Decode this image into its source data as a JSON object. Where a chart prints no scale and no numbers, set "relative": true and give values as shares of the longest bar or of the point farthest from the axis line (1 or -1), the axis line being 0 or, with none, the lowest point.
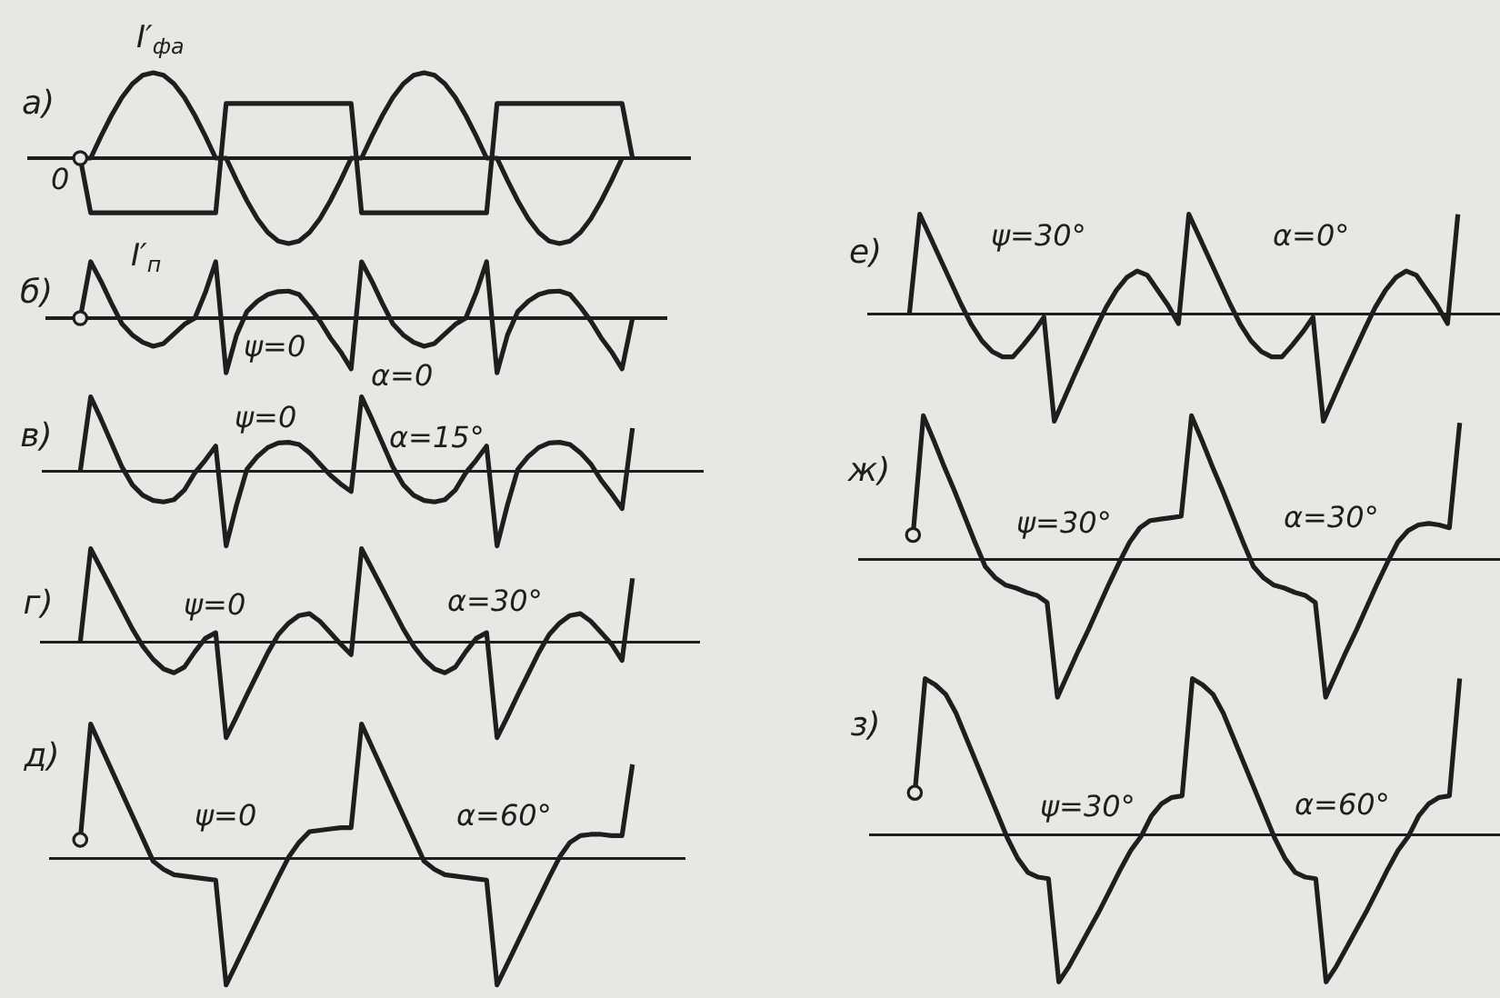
{
  "chart_data": [
    {
      "type": "line",
      "title": "а)",
      "relative": true,
      "categories": [
        null,
        null,
        null,
        null,
        null,
        null,
        null,
        null,
        null,
        null,
        null,
        null,
        null,
        null,
        null,
        null,
        null,
        null,
        null,
        null,
        null,
        null,
        null,
        null,
        null,
        null,
        null,
        null,
        null,
        null,
        null,
        null,
        null,
        null,
        null,
        null,
        null,
        null,
        null,
        null,
        null,
        null,
        null,
        null,
        null,
        null,
        null,
        null,
        null,
        null,
        null,
        null,
        null,
        null
      ],
      "series": [
        {
          "name": "I′$_{фa}$",
          "color": "#1e1e1e",
          "values": [
            0,
            0,
            0.26,
            0.5,
            0.71,
            0.87,
            0.97,
            1,
            0.97,
            0.87,
            0.71,
            0.5,
            0.26,
            0,
            0,
            -0.26,
            -0.5,
            -0.71,
            -0.87,
            -0.97,
            -1,
            -0.97,
            -0.87,
            -0.71,
            -0.5,
            -0.26,
            0,
            0,
            0.26,
            0.5,
            0.71,
            0.87,
            0.97,
            1,
            0.97,
            0.87,
            0.71,
            0.5,
            0.26,
            0,
            0,
            -0.26,
            -0.5,
            -0.71,
            -0.87,
            -0.97,
            -1,
            -0.97,
            -0.87,
            -0.71,
            -0.5,
            -0.26,
            0,
            null
          ]
        },
        {
          "name": "I′$_{п}$",
          "color": "#1e1e1e",
          "values": [
            0,
            -0.64,
            -0.64,
            -0.64,
            -0.64,
            -0.64,
            -0.64,
            -0.64,
            -0.64,
            -0.64,
            -0.64,
            -0.64,
            -0.64,
            -0.64,
            0.64,
            0.64,
            0.64,
            0.64,
            0.64,
            0.64,
            0.64,
            0.64,
            0.64,
            0.64,
            0.64,
            0.64,
            0.64,
            -0.64,
            -0.64,
            -0.64,
            -0.64,
            -0.64,
            -0.64,
            -0.64,
            -0.64,
            -0.64,
            -0.64,
            -0.64,
            -0.64,
            -0.64,
            0.64,
            0.64,
            0.64,
            0.64,
            0.64,
            0.64,
            0.64,
            0.64,
            0.64,
            0.64,
            0.64,
            0.64,
            0.64,
            0
          ]
        }
      ],
      "annotations": [
        "0"
      ]
    },
    {
      "type": "line",
      "title": "б)",
      "relative": true,
      "categories": [
        null,
        null,
        null,
        null,
        null,
        null,
        null,
        null,
        null,
        null,
        null,
        null,
        null,
        null,
        null,
        null,
        null,
        null,
        null,
        null,
        null,
        null,
        null,
        null,
        null,
        null,
        null,
        null,
        null,
        null,
        null,
        null,
        null,
        null,
        null,
        null,
        null,
        null,
        null,
        null,
        null,
        null,
        null,
        null,
        null,
        null,
        null,
        null,
        null,
        null,
        null,
        null,
        null,
        null
      ],
      "series": [
        {
          "color": "#1e1e1e",
          "values": [
            0,
            1.0,
            0.65,
            0.26,
            -0.1,
            -0.3,
            -0.43,
            -0.5,
            -0.45,
            -0.28,
            -0.11,
            0.0,
            0.45,
            1.0,
            -0.97,
            -0.3,
            0.12,
            0.3,
            0.42,
            0.47,
            0.48,
            0.42,
            0.2,
            -0.05,
            -0.35,
            -0.6,
            -0.9,
            1.0,
            0.65,
            0.26,
            -0.1,
            -0.3,
            -0.43,
            -0.5,
            -0.45,
            -0.28,
            -0.11,
            0.0,
            0.45,
            1.0,
            -0.97,
            -0.3,
            0.12,
            0.3,
            0.42,
            0.47,
            0.48,
            0.42,
            0.2,
            -0.05,
            -0.35,
            -0.6,
            -0.9,
            0
          ]
        }
      ],
      "annotations": [
        "ψ=0",
        "α=0"
      ]
    },
    {
      "type": "line",
      "title": "в)",
      "relative": true,
      "categories": [
        null,
        null,
        null,
        null,
        null,
        null,
        null,
        null,
        null,
        null,
        null,
        null,
        null,
        null,
        null,
        null,
        null,
        null,
        null,
        null,
        null,
        null,
        null,
        null,
        null,
        null,
        null,
        null,
        null,
        null,
        null,
        null,
        null,
        null,
        null,
        null,
        null,
        null,
        null,
        null,
        null,
        null,
        null,
        null,
        null,
        null,
        null,
        null,
        null,
        null,
        null,
        null,
        null,
        null
      ],
      "series": [
        {
          "color": "#1e1e1e",
          "values": [
            0,
            1.0,
            0.7,
            0.38,
            0.06,
            -0.18,
            -0.32,
            -0.39,
            -0.41,
            -0.38,
            -0.25,
            -0.02,
            0.15,
            0.34,
            -1.0,
            -0.45,
            0.03,
            0.2,
            0.32,
            0.38,
            0.39,
            0.36,
            0.25,
            0.1,
            -0.05,
            -0.17,
            -0.27,
            1.0,
            0.7,
            0.38,
            0.06,
            -0.18,
            -0.32,
            -0.39,
            -0.41,
            -0.38,
            -0.25,
            -0.02,
            0.15,
            0.34,
            -1.0,
            -0.45,
            0.03,
            0.2,
            0.32,
            0.38,
            0.39,
            0.36,
            0.25,
            0.1,
            -0.12,
            -0.3,
            -0.5,
            0.58
          ]
        }
      ],
      "annotations": [
        "ψ=0",
        "α=15°"
      ]
    },
    {
      "type": "line",
      "title": "г)",
      "relative": true,
      "categories": [
        null,
        null,
        null,
        null,
        null,
        null,
        null,
        null,
        null,
        null,
        null,
        null,
        null,
        null,
        null,
        null,
        null,
        null,
        null,
        null,
        null,
        null,
        null,
        null,
        null,
        null,
        null,
        null,
        null,
        null,
        null,
        null,
        null,
        null,
        null,
        null,
        null,
        null,
        null,
        null,
        null,
        null,
        null,
        null,
        null,
        null,
        null,
        null,
        null,
        null,
        null,
        null,
        null,
        null
      ],
      "series": [
        {
          "color": "#1e1e1e",
          "values": [
            0,
            0.98,
            0.77,
            0.56,
            0.35,
            0.14,
            -0.04,
            -0.18,
            -0.28,
            -0.32,
            -0.26,
            -0.1,
            0.04,
            0.1,
            -1.0,
            -0.78,
            -0.55,
            -0.33,
            -0.11,
            0.08,
            0.2,
            0.28,
            0.3,
            0.22,
            0.1,
            -0.02,
            -0.13,
            0.98,
            0.77,
            0.56,
            0.35,
            0.14,
            -0.04,
            -0.18,
            -0.28,
            -0.32,
            -0.26,
            -0.1,
            0.04,
            0.1,
            -1.0,
            -0.78,
            -0.55,
            -0.33,
            -0.11,
            0.08,
            0.2,
            0.28,
            0.3,
            0.22,
            0.1,
            -0.02,
            -0.19,
            0.67
          ]
        }
      ],
      "annotations": [
        "ψ=0",
        "α=30°"
      ]
    },
    {
      "type": "line",
      "title": "д)",
      "relative": true,
      "categories": [
        null,
        null,
        null,
        null,
        null,
        null,
        null,
        null,
        null,
        null,
        null,
        null,
        null,
        null,
        null,
        null,
        null,
        null,
        null,
        null,
        null,
        null,
        null,
        null,
        null,
        null,
        null,
        null,
        null,
        null,
        null,
        null,
        null,
        null,
        null,
        null,
        null,
        null,
        null,
        null,
        null,
        null,
        null,
        null,
        null,
        null,
        null,
        null,
        null,
        null,
        null,
        null,
        null,
        null
      ],
      "series": [
        {
          "color": "#1e1e1e",
          "values": [
            0.14,
            1.0,
            0.83,
            0.66,
            0.49,
            0.32,
            0.15,
            -0.02,
            -0.08,
            -0.12,
            -0.13,
            -0.14,
            -0.15,
            -0.16,
            -0.94,
            -0.78,
            -0.62,
            -0.46,
            -0.3,
            -0.14,
            0.01,
            0.12,
            0.2,
            0.21,
            0.22,
            0.23,
            0.23,
            1.0,
            0.83,
            0.66,
            0.49,
            0.32,
            0.15,
            -0.02,
            -0.08,
            -0.12,
            -0.13,
            -0.14,
            -0.15,
            -0.16,
            -0.94,
            -0.78,
            -0.62,
            -0.46,
            -0.3,
            -0.14,
            0.01,
            0.12,
            0.17,
            0.18,
            0.18,
            0.17,
            0.17,
            0.7
          ]
        }
      ],
      "annotations": [
        "ψ=0",
        "α=60°"
      ]
    },
    {
      "type": "line",
      "title": "е)",
      "relative": true,
      "categories": [
        null,
        null,
        null,
        null,
        null,
        null,
        null,
        null,
        null,
        null,
        null,
        null,
        null,
        null,
        null,
        null,
        null,
        null,
        null,
        null,
        null,
        null,
        null,
        null,
        null,
        null,
        null,
        null,
        null,
        null,
        null,
        null,
        null,
        null,
        null,
        null,
        null,
        null,
        null,
        null,
        null,
        null,
        null,
        null,
        null,
        null,
        null,
        null,
        null,
        null,
        null,
        null,
        null,
        null
      ],
      "series": [
        {
          "color": "#1e1e1e",
          "values": [
            0,
            0.93,
            0.72,
            0.51,
            0.3,
            0.09,
            -0.1,
            -0.25,
            -0.35,
            -0.4,
            -0.4,
            -0.29,
            -0.17,
            -0.03,
            -1.0,
            -0.78,
            -0.56,
            -0.35,
            -0.14,
            0.06,
            0.22,
            0.34,
            0.4,
            0.36,
            0.22,
            0.08,
            -0.09,
            0.93,
            0.72,
            0.51,
            0.3,
            0.09,
            -0.1,
            -0.25,
            -0.35,
            -0.4,
            -0.4,
            -0.29,
            -0.17,
            -0.03,
            -1.0,
            -0.78,
            -0.56,
            -0.35,
            -0.14,
            0.06,
            0.22,
            0.34,
            0.4,
            0.36,
            0.22,
            0.08,
            -0.09,
            0.93
          ]
        }
      ],
      "annotations": [
        "ψ=30°",
        "α=0°"
      ]
    },
    {
      "type": "line",
      "title": "ж)",
      "relative": true,
      "categories": [
        null,
        null,
        null,
        null,
        null,
        null,
        null,
        null,
        null,
        null,
        null,
        null,
        null,
        null,
        null,
        null,
        null,
        null,
        null,
        null,
        null,
        null,
        null,
        null,
        null,
        null,
        null,
        null,
        null,
        null,
        null,
        null,
        null,
        null,
        null,
        null,
        null,
        null,
        null,
        null,
        null,
        null,
        null,
        null,
        null,
        null,
        null,
        null,
        null,
        null,
        null,
        null,
        null,
        null
      ],
      "series": [
        {
          "color": "#1e1e1e",
          "values": [
            0.17,
            1.0,
            0.83,
            0.65,
            0.48,
            0.3,
            0.12,
            -0.05,
            -0.13,
            -0.18,
            -0.2,
            -0.23,
            -0.25,
            -0.3,
            -0.96,
            -0.8,
            -0.64,
            -0.49,
            -0.33,
            -0.17,
            -0.02,
            0.12,
            0.22,
            0.27,
            0.28,
            0.29,
            0.3,
            1.0,
            0.83,
            0.65,
            0.48,
            0.3,
            0.12,
            -0.05,
            -0.13,
            -0.18,
            -0.2,
            -0.23,
            -0.25,
            -0.3,
            -0.96,
            -0.8,
            -0.64,
            -0.49,
            -0.33,
            -0.17,
            -0.02,
            0.12,
            0.2,
            0.24,
            0.25,
            0.24,
            0.22,
            0.95
          ]
        }
      ],
      "annotations": [
        "ψ=30°",
        "α=30°"
      ]
    },
    {
      "type": "line",
      "title": "з)",
      "relative": true,
      "categories": [
        null,
        null,
        null,
        null,
        null,
        null,
        null,
        null,
        null,
        null,
        null,
        null,
        null,
        null,
        null,
        null,
        null,
        null,
        null,
        null,
        null,
        null,
        null,
        null,
        null,
        null,
        null,
        null,
        null,
        null,
        null,
        null,
        null,
        null,
        null,
        null,
        null,
        null,
        null,
        null,
        null,
        null,
        null,
        null,
        null,
        null,
        null,
        null,
        null,
        null,
        null,
        null,
        null,
        null
      ],
      "series": [
        {
          "color": "#1e1e1e",
          "values": [
            0.27,
            1.0,
            0.96,
            0.9,
            0.78,
            0.62,
            0.46,
            0.3,
            0.14,
            -0.02,
            -0.15,
            -0.24,
            -0.27,
            -0.28,
            -0.94,
            -0.84,
            -0.72,
            -0.6,
            -0.48,
            -0.35,
            -0.22,
            -0.1,
            -0.01,
            0.12,
            0.2,
            0.24,
            0.25,
            1.0,
            0.96,
            0.9,
            0.78,
            0.62,
            0.46,
            0.3,
            0.14,
            -0.02,
            -0.15,
            -0.24,
            -0.27,
            -0.28,
            -0.94,
            -0.84,
            -0.72,
            -0.6,
            -0.48,
            -0.35,
            -0.22,
            -0.1,
            -0.01,
            0.12,
            0.2,
            0.24,
            0.25,
            1.0
          ]
        }
      ],
      "annotations": [
        "ψ=30°",
        "α=60°"
      ]
    }
  ]
}
